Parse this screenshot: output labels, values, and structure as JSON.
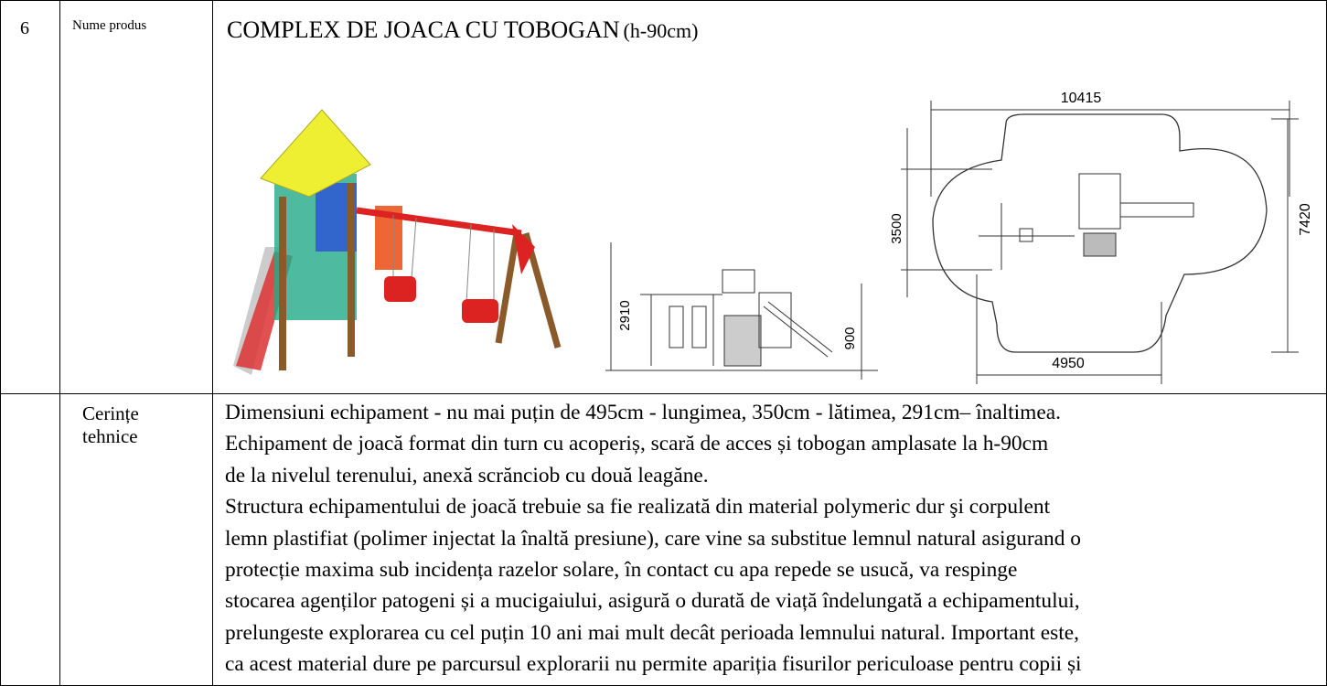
{
  "row1": {
    "number": "6",
    "label": "Nume produs",
    "title": "COMPLEX DE JOACA CU TOBOGAN",
    "title_suffix": "(h-90cm)",
    "drawings": {
      "side_height": "2910",
      "side_platform": "900",
      "plan_length": "10415",
      "plan_width": "3500",
      "plan_depth": "7420",
      "plan_base": "4950"
    }
  },
  "row2": {
    "label_lines": [
      "Cerințe",
      "tehnice"
    ],
    "lines": [
      "Dimensiuni echipament - nu mai puțin de 495cm - lungimea, 350cm - lătimea, 291cm– înaltimea.",
      "Echipament de joacă format din turn cu acoperiș, scară de acces și tobogan amplasate la h-90cm",
      "de la nivelul terenului, anexă scrănciob cu două leagăne.",
      "Structura echipamentului de joacă trebuie sa fie realizată din material polymeric dur şi corpulent",
      "lemn plastifiat (polimer injectat la înaltă presiune), care vine sa substitue lemnul natural asigurand o",
      "protecție maxima sub incidența razelor solare, în contact cu apa repede se usucă, va respinge",
      "stocarea agenților patogeni și a mucigaiului, asigură o durată de viață îndelungată a echipamentului,",
      "prelungeste explorarea cu cel puțin 10 ani mai mult decât perioada lemnului natural. Important este,",
      "ca acest material dure pe parcursul explorarii nu permite apariția fisurilor periculoase pentru copii și"
    ]
  }
}
